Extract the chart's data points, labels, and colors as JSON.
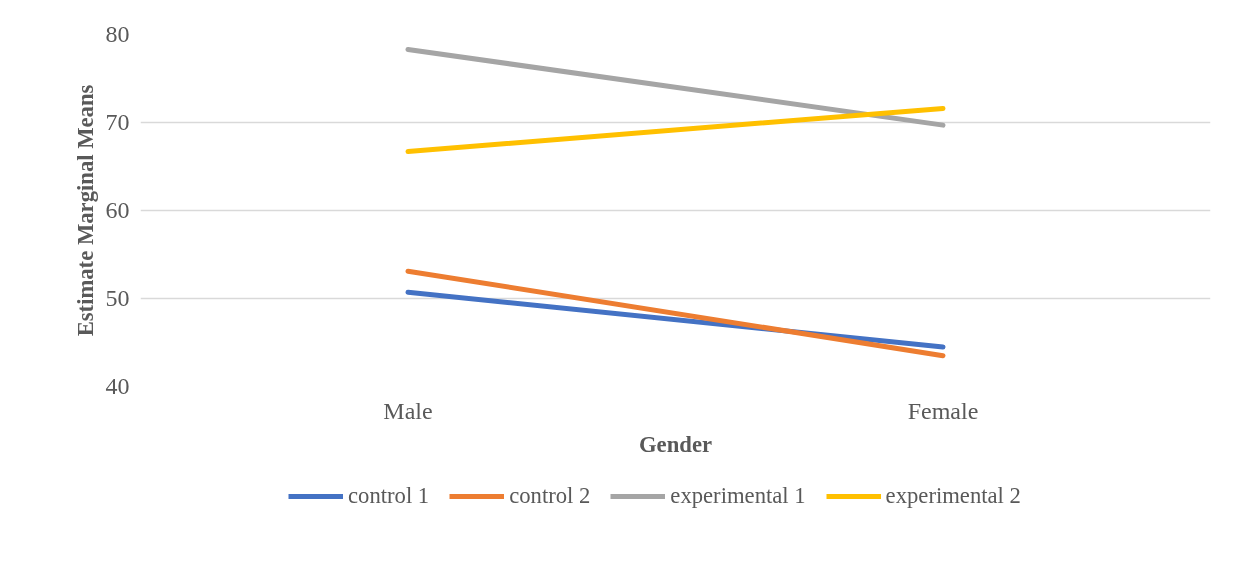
{
  "chart_data": {
    "type": "line",
    "xlabel": "Gender",
    "ylabel": "Estimate Marginal Means",
    "categories": [
      "Male",
      "Female"
    ],
    "series": [
      {
        "name": "control 1",
        "color": "#4472c4",
        "values": [
          50.7,
          44.5
        ]
      },
      {
        "name": "control 2",
        "color": "#ed7d31",
        "values": [
          53.1,
          43.5
        ]
      },
      {
        "name": "experimental 1",
        "color": "#a5a5a5",
        "values": [
          78.3,
          69.7
        ]
      },
      {
        "name": "experimental 2",
        "color": "#ffc000",
        "values": [
          66.7,
          71.6
        ]
      }
    ],
    "ylim": [
      40,
      80
    ],
    "yticks": [
      40,
      50,
      60,
      70,
      80
    ],
    "grid": "y",
    "legend": "bottom",
    "marker": "none",
    "line_style": "solid"
  }
}
